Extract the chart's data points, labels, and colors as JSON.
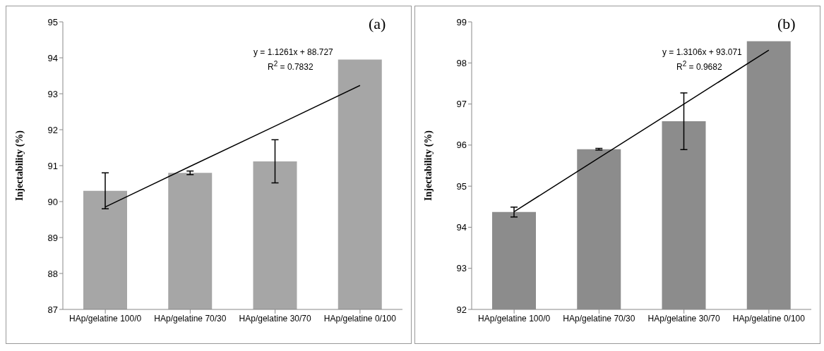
{
  "chart_data": [
    {
      "type": "bar",
      "ylabel": "Injectability (%)",
      "categories": [
        "HAp/gelatine 100/0",
        "HAp/gelatine 70/30",
        "HAp/gelatine 30/70",
        "HAp/gelatine 0/100"
      ],
      "ylim": [
        87,
        95
      ],
      "yticks": [
        87,
        88,
        89,
        90,
        91,
        92,
        93,
        94,
        95
      ],
      "grid": false,
      "series": [
        {
          "color": "#a6a6a6",
          "values": [
            90.3,
            90.8,
            91.12,
            93.95
          ],
          "errors": [
            0.5,
            0.05,
            0.6,
            null
          ]
        },
        {
          "type": "line",
          "color": "#000000",
          "x": [
            "HAp/gelatine 100/0",
            "HAp/gelatine 70/30",
            "HAp/gelatine 30/70",
            "HAp/gelatine 0/100"
          ],
          "values": [
            89.85,
            90.98,
            92.1,
            93.23
          ]
        }
      ],
      "annotations": [
        "(a)",
        "y = 1.1261x + 88.727",
        "R$^{2}$ = 0.7832"
      ]
    },
    {
      "type": "bar",
      "ylabel": "Injectability (%)",
      "categories": [
        "HAp/gelatine 100/0",
        "HAp/gelatine 70/30",
        "HAp/gelatine 30/70",
        "HAp/gelatine 0/100"
      ],
      "ylim": [
        92,
        99
      ],
      "yticks": [
        92,
        93,
        94,
        95,
        96,
        97,
        98,
        99
      ],
      "grid": false,
      "series": [
        {
          "color": "#8c8c8c",
          "values": [
            94.37,
            95.9,
            96.58,
            98.53
          ],
          "errors": [
            0.12,
            0.02,
            0.69,
            null
          ]
        },
        {
          "type": "line",
          "color": "#000000",
          "x": [
            "HAp/gelatine 100/0",
            "HAp/gelatine 70/30",
            "HAp/gelatine 30/70",
            "HAp/gelatine 0/100"
          ],
          "values": [
            94.38,
            95.69,
            97.0,
            98.31
          ]
        }
      ],
      "annotations": [
        "(b)",
        "y = 1.3106x + 93.071",
        "R$^{2}$ = 0.9682"
      ]
    }
  ]
}
